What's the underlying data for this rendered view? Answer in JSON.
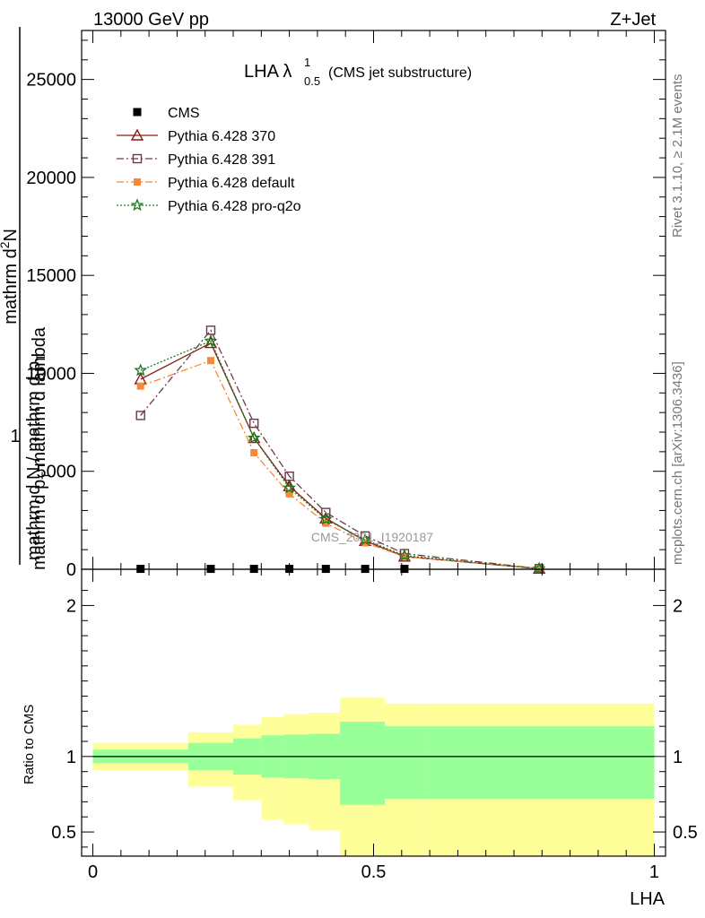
{
  "header": {
    "left": "13000 GeV pp",
    "right": "Z+Jet"
  },
  "side_labels": {
    "rivet": "Rivet 3.1.10, ≥ 2.1M events",
    "mcplots": "mcplots.cern.ch [arXiv:1306.3436]"
  },
  "chart_data": [
    {
      "type": "line",
      "title": "LHA λ",
      "title_sup": "1",
      "title_sub": "0.5",
      "title_suffix": "(CMS jet substructure)",
      "watermark": "CMS_2021_I1920187",
      "xlim": [
        -0.02,
        1.02
      ],
      "ylim": [
        0,
        27500
      ],
      "ylabel_num": "1",
      "ylabel_den": "mathrm d N / mathrm d p",
      "ylabel_den_sub": "T",
      "ylabel_num2": "mathrm d",
      "ylabel_num2_sup": "2",
      "ylabel_num2_rest": "N",
      "ylabel_den2": "mathrm d p",
      "ylabel_den2_sub": "T",
      "ylabel_den2_rest": "mathrm d lambda",
      "yticks": [
        {
          "v": 0,
          "label": "0"
        },
        {
          "v": 5000,
          "label": "5000"
        },
        {
          "v": 10000,
          "label": "10000"
        },
        {
          "v": 15000,
          "label": "15000"
        },
        {
          "v": 20000,
          "label": "20000"
        },
        {
          "v": 25000,
          "label": "25000"
        }
      ],
      "series": [
        {
          "name": "CMS",
          "color": "#000000",
          "marker": "square",
          "x": [
            0.085,
            0.21,
            0.287,
            0.35,
            0.415,
            0.485,
            0.555
          ],
          "y": [
            20,
            20,
            20,
            20,
            20,
            20,
            20
          ]
        },
        {
          "name": "Pythia 6.428 370",
          "color": "#8b1a1a",
          "marker": "triangle",
          "dash": "",
          "x": [
            0.085,
            0.21,
            0.287,
            0.35,
            0.415,
            0.485,
            0.555,
            0.795
          ],
          "y": [
            9700,
            11550,
            6700,
            4250,
            2600,
            1450,
            650,
            30
          ]
        },
        {
          "name": "Pythia 6.428 391",
          "color": "#6b3a4a",
          "marker": "open-square",
          "dash": "8,3,2,3",
          "x": [
            0.085,
            0.21,
            0.287,
            0.35,
            0.415,
            0.485,
            0.555,
            0.795
          ],
          "y": [
            7850,
            12200,
            7450,
            4750,
            2900,
            1700,
            800,
            30
          ]
        },
        {
          "name": "Pythia 6.428 default",
          "color": "#f5883a",
          "marker": "filled-square",
          "dash": "8,3,2,3",
          "x": [
            0.085,
            0.21,
            0.287,
            0.35,
            0.415,
            0.485,
            0.555,
            0.795
          ],
          "y": [
            9350,
            10650,
            5950,
            3850,
            2350,
            1350,
            650,
            30
          ]
        },
        {
          "name": "Pythia 6.428 pro-q2o",
          "color": "#1a7a1a",
          "marker": "star",
          "dash": "2,2",
          "x": [
            0.085,
            0.21,
            0.287,
            0.35,
            0.415,
            0.485,
            0.555,
            0.795
          ],
          "y": [
            10150,
            11650,
            6700,
            4150,
            2550,
            1500,
            700,
            30
          ]
        }
      ]
    },
    {
      "type": "area",
      "ylabel": "Ratio to CMS",
      "xlabel": "LHA",
      "xlim": [
        -0.02,
        1.02
      ],
      "ylim": [
        0.34,
        2.24
      ],
      "reference_line": 1,
      "yticks": [
        {
          "v": 0.5,
          "label": "0.5"
        },
        {
          "v": 1,
          "label": "1"
        },
        {
          "v": 2,
          "label": "2"
        }
      ],
      "xticks": [
        {
          "v": 0,
          "label": "0"
        },
        {
          "v": 0.5,
          "label": "0.5"
        },
        {
          "v": 1,
          "label": "1"
        }
      ],
      "bins": [
        0,
        0.17,
        0.25,
        0.3,
        0.34,
        0.385,
        0.44,
        0.52,
        0.59,
        1.0
      ],
      "band_inner": [
        {
          "lo": 0.955,
          "hi": 1.045
        },
        {
          "lo": 0.91,
          "hi": 1.09
        },
        {
          "lo": 0.88,
          "hi": 1.12
        },
        {
          "lo": 0.86,
          "hi": 1.14
        },
        {
          "lo": 0.855,
          "hi": 1.145
        },
        {
          "lo": 0.85,
          "hi": 1.15
        },
        {
          "lo": 0.68,
          "hi": 1.23
        },
        {
          "lo": 0.72,
          "hi": 1.2
        },
        {
          "lo": 0.72,
          "hi": 1.2
        }
      ],
      "band_outer": [
        {
          "lo": 0.91,
          "hi": 1.09
        },
        {
          "lo": 0.8,
          "hi": 1.16
        },
        {
          "lo": 0.71,
          "hi": 1.21
        },
        {
          "lo": 0.58,
          "hi": 1.26
        },
        {
          "lo": 0.55,
          "hi": 1.28
        },
        {
          "lo": 0.51,
          "hi": 1.29
        },
        {
          "lo": 0.3,
          "hi": 1.39
        },
        {
          "lo": 0.72,
          "hi": 1.35
        },
        {
          "lo": 0.72,
          "hi": 1.35
        }
      ],
      "band_outer_lower_extra": [
        {
          "lo": 0.3,
          "hi": 0.72
        },
        {
          "lo": 0.3,
          "hi": 0.72
        }
      ],
      "colors": {
        "inner": "#99ff99",
        "outer": "#ffff99"
      }
    }
  ]
}
